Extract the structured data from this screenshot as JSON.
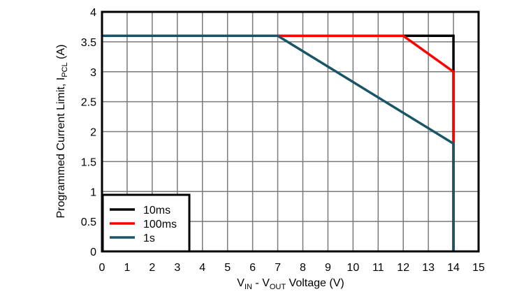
{
  "chart_data": {
    "type": "line",
    "title": "",
    "xlabel": "VIN - VOUT Voltage (V)",
    "xlabel_parts": {
      "v1": "V",
      "sub1": "IN",
      "mid": " - V",
      "sub2": "OUT",
      "tail": " Voltage (V)"
    },
    "ylabel": "Programmed Current Limit, IPCL (A)",
    "ylabel_parts": {
      "pre": "Programmed Current Limit, I",
      "sub": "PCL",
      "tail": " (A)"
    },
    "xlim": [
      0,
      15
    ],
    "ylim": [
      0,
      4
    ],
    "xticks": [
      "0",
      "1",
      "2",
      "3",
      "4",
      "5",
      "6",
      "7",
      "8",
      "9",
      "10",
      "11",
      "12",
      "13",
      "14",
      "15"
    ],
    "yticks": [
      "0",
      "0.5",
      "1",
      "1.5",
      "2",
      "2.5",
      "3",
      "3.5",
      "4"
    ],
    "grid": true,
    "legend_position": "lower left",
    "series": [
      {
        "name": "10ms",
        "color": "#000000",
        "x": [
          0,
          14,
          14
        ],
        "y": [
          3.6,
          3.6,
          0
        ]
      },
      {
        "name": "100ms",
        "color": "#ff0000",
        "x": [
          0,
          12,
          14,
          14
        ],
        "y": [
          3.6,
          3.6,
          3.0,
          0
        ]
      },
      {
        "name": "1s",
        "color": "#1a5566",
        "x": [
          0,
          7,
          14,
          14
        ],
        "y": [
          3.6,
          3.6,
          1.8,
          0
        ]
      }
    ]
  },
  "legend": {
    "items": [
      {
        "label": "10ms",
        "color": "#000000"
      },
      {
        "label": "100ms",
        "color": "#ff0000"
      },
      {
        "label": "1s",
        "color": "#1a5566"
      }
    ]
  }
}
